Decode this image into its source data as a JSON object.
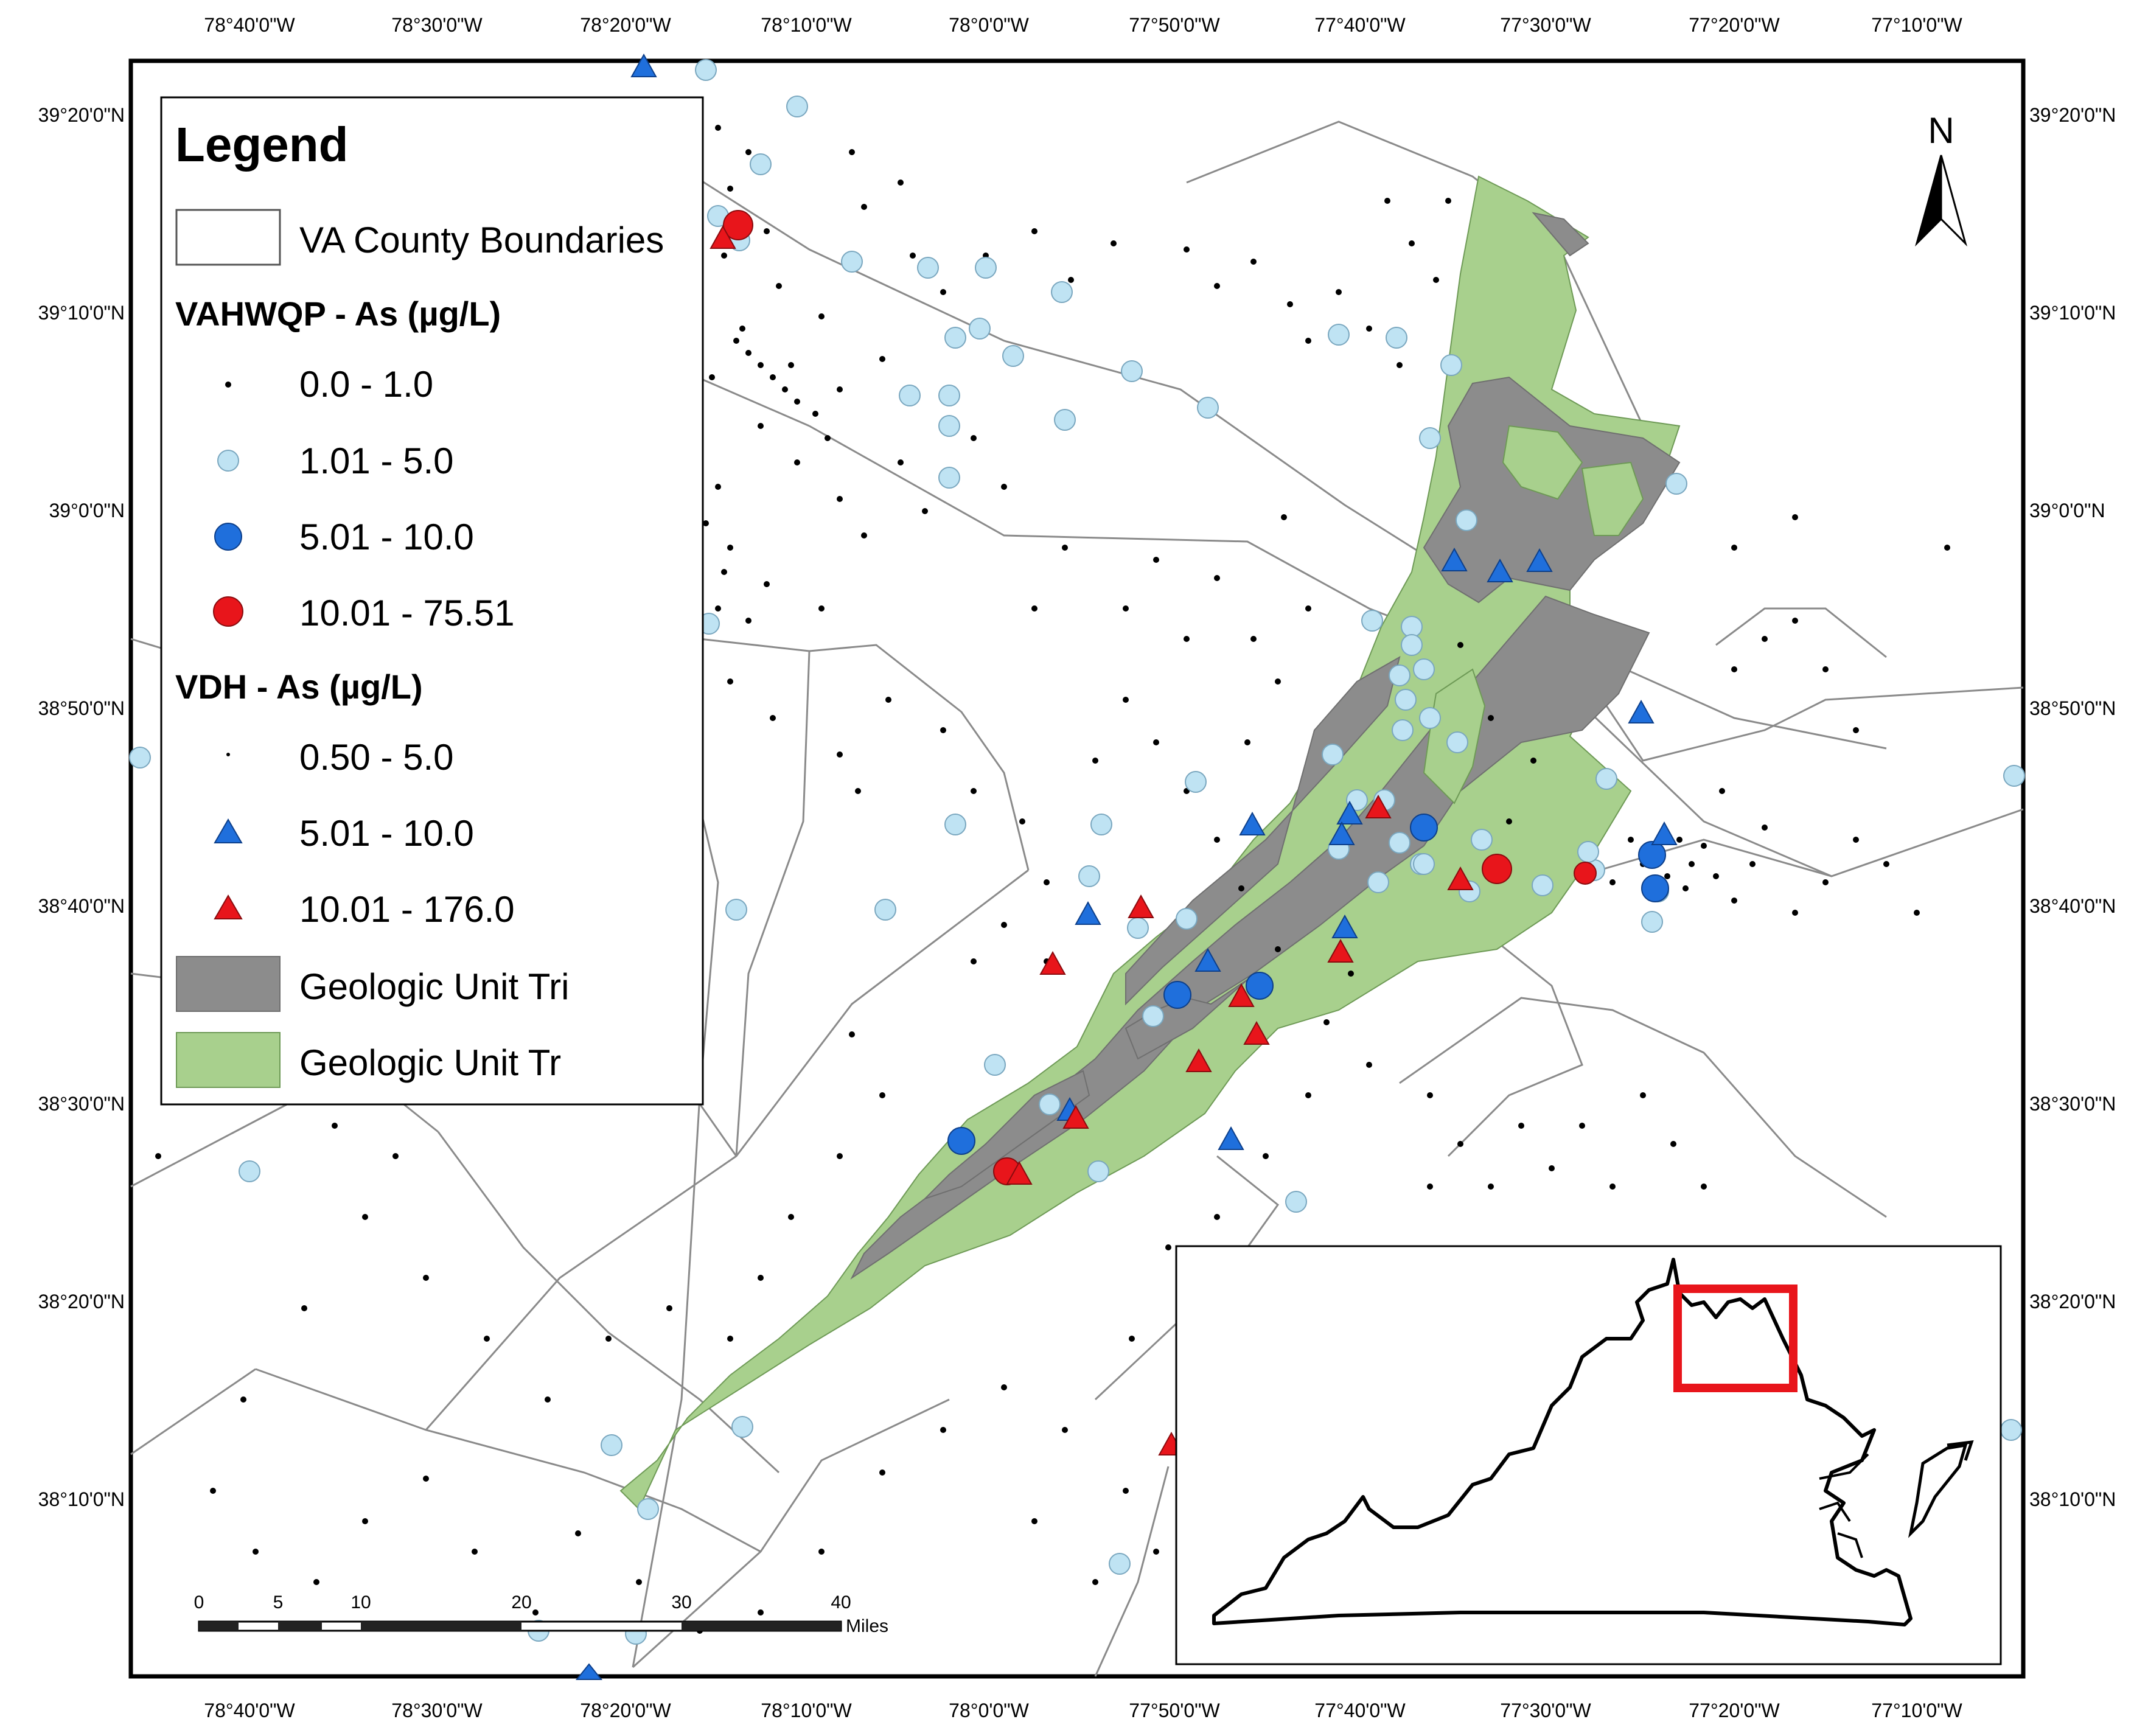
{
  "map": {
    "longitude_labels": [
      "78°40'0\"W",
      "78°30'0\"W",
      "78°20'0\"W",
      "78°10'0\"W",
      "78°0'0\"W",
      "77°50'0\"W",
      "77°40'0\"W",
      "77°30'0\"W",
      "77°20'0\"W",
      "77°10'0\"W"
    ],
    "latitude_labels": [
      "39°20'0\"N",
      "39°10'0\"N",
      "39°0'0\"N",
      "38°50'0\"N",
      "38°40'0\"N",
      "38°30'0\"N",
      "38°20'0\"N",
      "38°10'0\"N"
    ]
  },
  "legend": {
    "title": "Legend",
    "county_label": "VA County Boundaries",
    "vahwqp_heading": "VAHWQP - As (µg/L)",
    "vahwqp_classes": [
      "0.0 - 1.0",
      "1.01 - 5.0",
      "5.01 - 10.0",
      "10.01 - 75.51"
    ],
    "vdh_heading": "VDH - As (µg/L)",
    "vdh_classes": [
      "0.50 - 5.0",
      "5.01 - 10.0",
      "10.01 - 176.0"
    ],
    "geo_tri_label": "Geologic Unit Tri",
    "geo_tr_label": "Geologic Unit Tr"
  },
  "scale_bar": {
    "labels": [
      "0",
      "5",
      "10",
      "20",
      "30",
      "40"
    ],
    "unit": "Miles"
  },
  "north_arrow": {
    "label": "N"
  },
  "colors": {
    "tr_green": "#a8d08d",
    "tri_gray": "#8c8c8c",
    "low_blue": "#bfe3f3",
    "mid_blue": "#1f6fdc",
    "high_red": "#e8151b",
    "inset_box": "#e8151b"
  }
}
